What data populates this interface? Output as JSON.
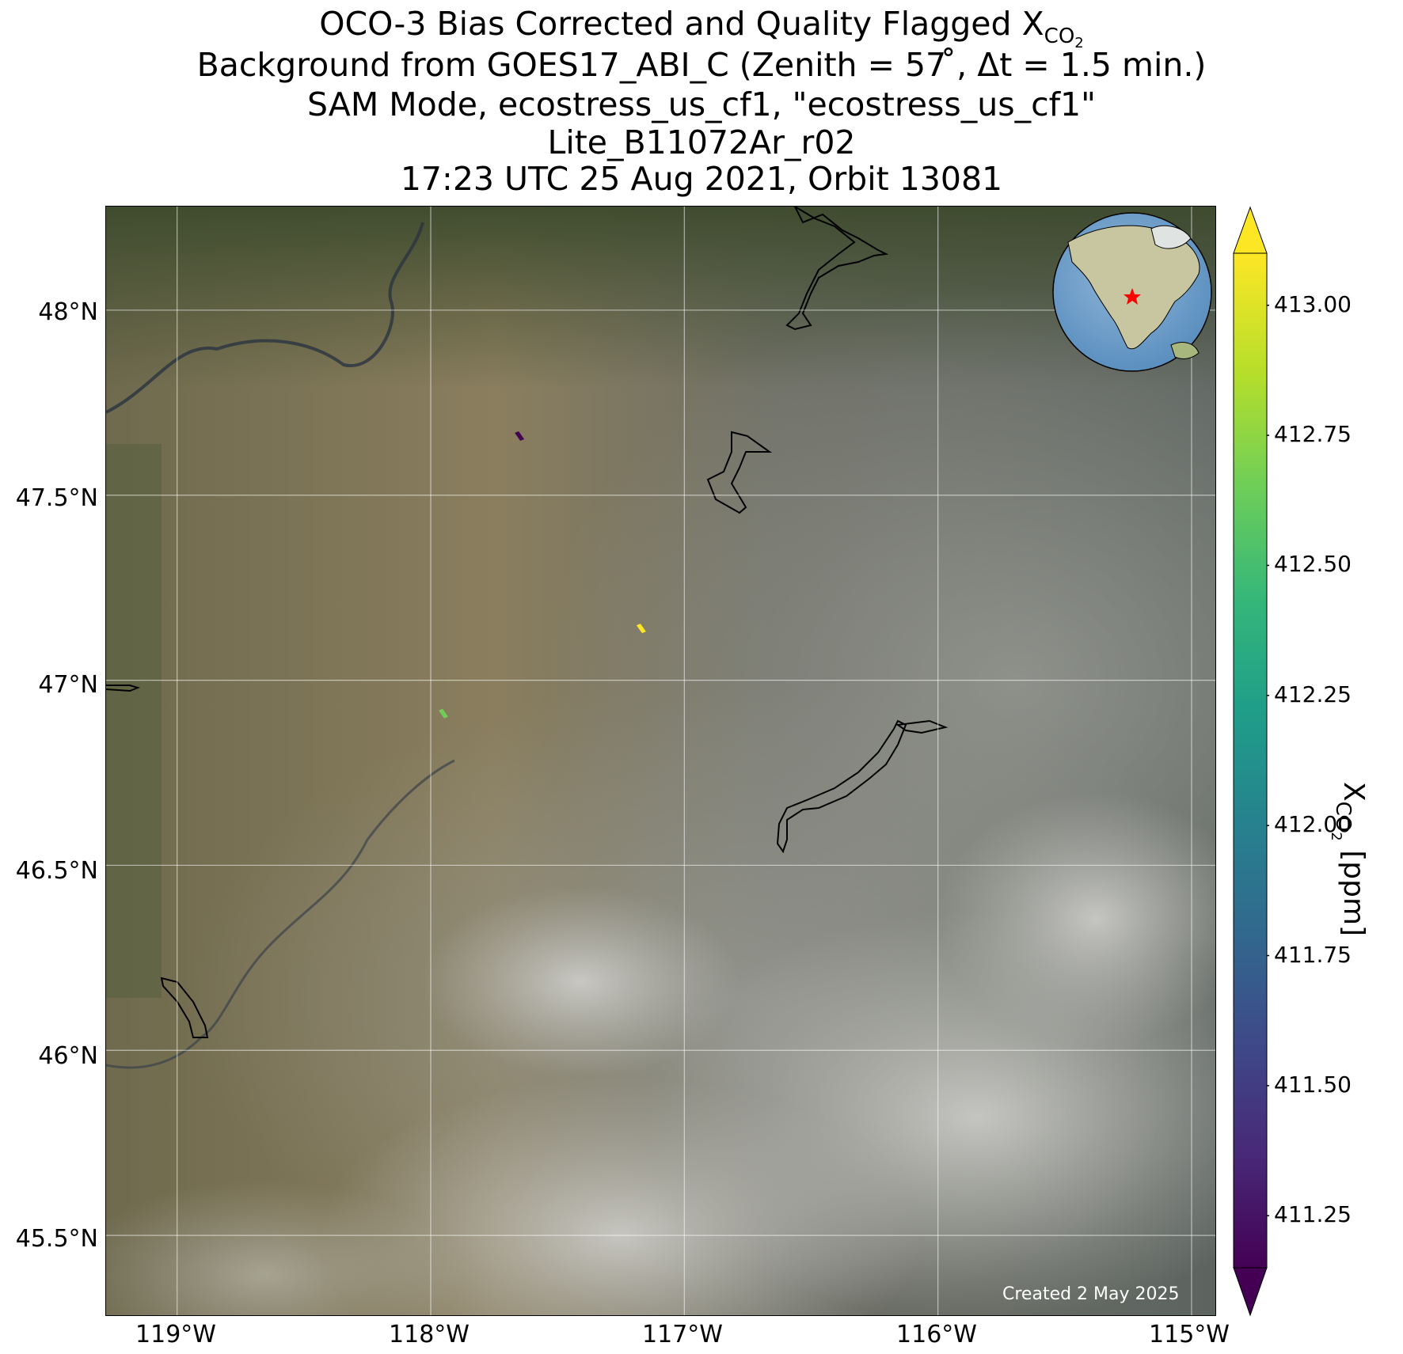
{
  "title": {
    "line1_prefix": "OCO-3 Bias Corrected and Quality Flagged X",
    "line1_sub": "CO",
    "line1_subsub": "2",
    "line2": "Background from GOES17_ABI_C (Zenith = 57$^\\circ$, Δt =  1.5 min.)",
    "line2_display": "Background from GOES17_ABI_C (Zenith = 57 ̊, Δt =  1.5 min.)",
    "line3": "SAM Mode, ecostress_us_cf1, \"ecostress_us_cf1\"",
    "line4": "Lite_B11072Ar_r02",
    "line5": "17:23 UTC 25 Aug 2021, Orbit 13081"
  },
  "map": {
    "lat_ticks": [
      "48°N",
      "47.5°N",
      "47°N",
      "46.5°N",
      "46°N",
      "45.5°N"
    ],
    "lon_ticks": [
      "119°W",
      "118°W",
      "117°W",
      "116°W",
      "115°W"
    ],
    "extent": {
      "lon_min": -119.28,
      "lon_max": -114.9,
      "lat_min": 45.28,
      "lat_max": 48.28
    },
    "gridlines": true,
    "created": "Created 2 May 2025",
    "inset": {
      "type": "globe",
      "marker": "red-star",
      "location": "top-right"
    }
  },
  "chart_data": {
    "type": "scatter",
    "title": "OCO-3 Bias Corrected and Quality Flagged XCO2",
    "points": [
      {
        "lon": -117.65,
        "lat": 47.66,
        "xco2": 411.15
      },
      {
        "lon": -117.17,
        "lat": 47.14,
        "xco2": 413.05
      },
      {
        "lon": -117.95,
        "lat": 46.91,
        "xco2": 412.6
      }
    ]
  },
  "colorbar": {
    "label_prefix": "X",
    "label_sub": "CO",
    "label_subsub": "2",
    "label_suffix": " [ppm]",
    "vmin": 411.15,
    "vmax": 413.1,
    "ticks": [
      "411.25",
      "411.50",
      "411.75",
      "412.00",
      "412.25",
      "412.50",
      "412.75",
      "413.00"
    ],
    "tick_values": [
      411.25,
      411.5,
      411.75,
      412.0,
      412.25,
      412.5,
      412.75,
      413.0
    ],
    "colormap": "viridis",
    "colors": [
      "#440154",
      "#482878",
      "#3e4989",
      "#31688e",
      "#26828e",
      "#1f9e89",
      "#35b779",
      "#6ece58",
      "#b5de2b",
      "#fde725"
    ]
  }
}
